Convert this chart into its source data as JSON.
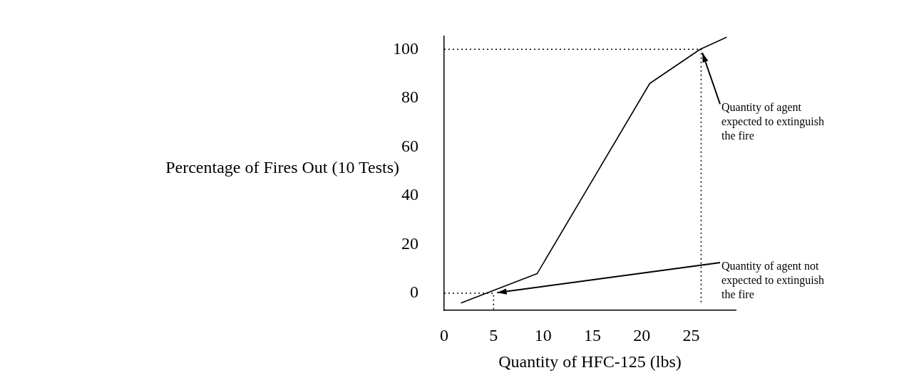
{
  "chart_data": {
    "type": "line",
    "xlabel": "Quantity of HFC-125 (lbs)",
    "ylabel": "Percentage of Fires Out (10 Tests)",
    "x": [
      1.7,
      9.4,
      20.8,
      25.9,
      28.6
    ],
    "series": [
      {
        "color": "#000000",
        "values": [
          -4,
          8,
          86,
          100,
          105
        ]
      },
      {
        "color": "#000000",
        "line_style": "dotted",
        "x": [
          0,
          26,
          26
        ],
        "values": [
          100,
          100,
          -3.7
        ]
      },
      {
        "color": "#000000",
        "line_style": "dotted",
        "x": [
          0,
          5,
          5
        ],
        "values": [
          0,
          0,
          -7
        ]
      }
    ],
    "xlim": [
      0,
      29.5
    ],
    "ylim": [
      -7,
      105.5
    ],
    "xticks": [
      0,
      5,
      10,
      15,
      20,
      25
    ],
    "yticks": [
      0,
      20,
      40,
      60,
      80,
      100
    ],
    "grid": false,
    "legend": false,
    "marker": "none",
    "line_style": "solid",
    "annotations": [
      {
        "text": "Quantity of agent expected to extinguish the fire",
        "x": 26,
        "y": 100
      },
      {
        "text": "Quantity of agent not expected to extinguish the fire",
        "x": 5,
        "y": 0
      }
    ]
  }
}
